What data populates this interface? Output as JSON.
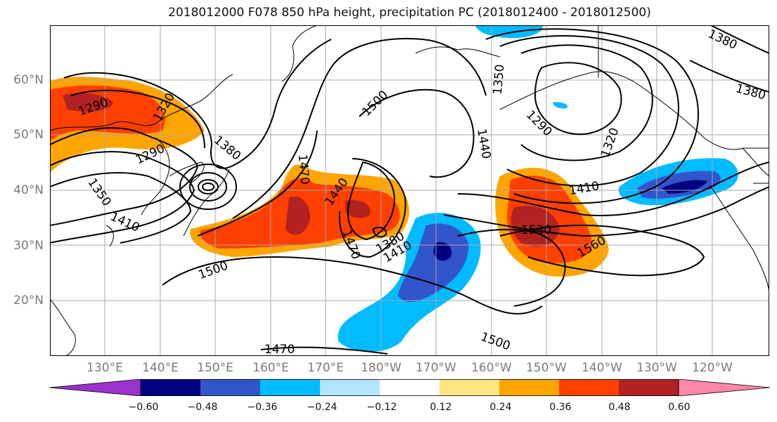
{
  "title": "2018012000 F078 850 hPa height, precipitation PC (2018012400 - 2018012500)",
  "lat_labels": [
    "60°N",
    "50°N",
    "40°N",
    "30°N",
    "20°N"
  ],
  "lon_labels": [
    "130°E",
    "140°E",
    "150°E",
    "160°E",
    "170°E",
    "180°W",
    "170°W",
    "160°W",
    "150°W",
    "140°W",
    "130°W",
    "120°W"
  ],
  "colorbar": {
    "ticks": [
      "−0.60",
      "−0.48",
      "−0.36",
      "−0.24",
      "−0.12",
      "0.12",
      "0.24",
      "0.36",
      "0.48",
      "0.60"
    ],
    "colors": [
      "#9933cc",
      "#000080",
      "#3355cc",
      "#00bbff",
      "#b3e5ff",
      "#ffffff",
      "#ffe680",
      "#ffa500",
      "#ff4000",
      "#b22222",
      "#ff88aa"
    ]
  },
  "contour_labels": {
    "c1290a": "1290",
    "c1320a": "1320",
    "c1290b": "1290",
    "c1380a": "1380",
    "c1350a": "1350",
    "c1410a": "1410",
    "c1470a": "1470",
    "c1440a": "1440",
    "c1500a": "1500",
    "c1470b": "1470",
    "c1380b": "1380",
    "c1410b": "1410",
    "c1500b": "1500",
    "c1440b": "1440",
    "c1350b": "1350",
    "c1290c": "1290",
    "c1320b": "1320",
    "c1410c": "1410",
    "c1530": "1530",
    "c1560": "1560",
    "c1380c": "1380",
    "c1380d": "1380",
    "c1500c": "1500",
    "c1470c": "1470"
  }
}
